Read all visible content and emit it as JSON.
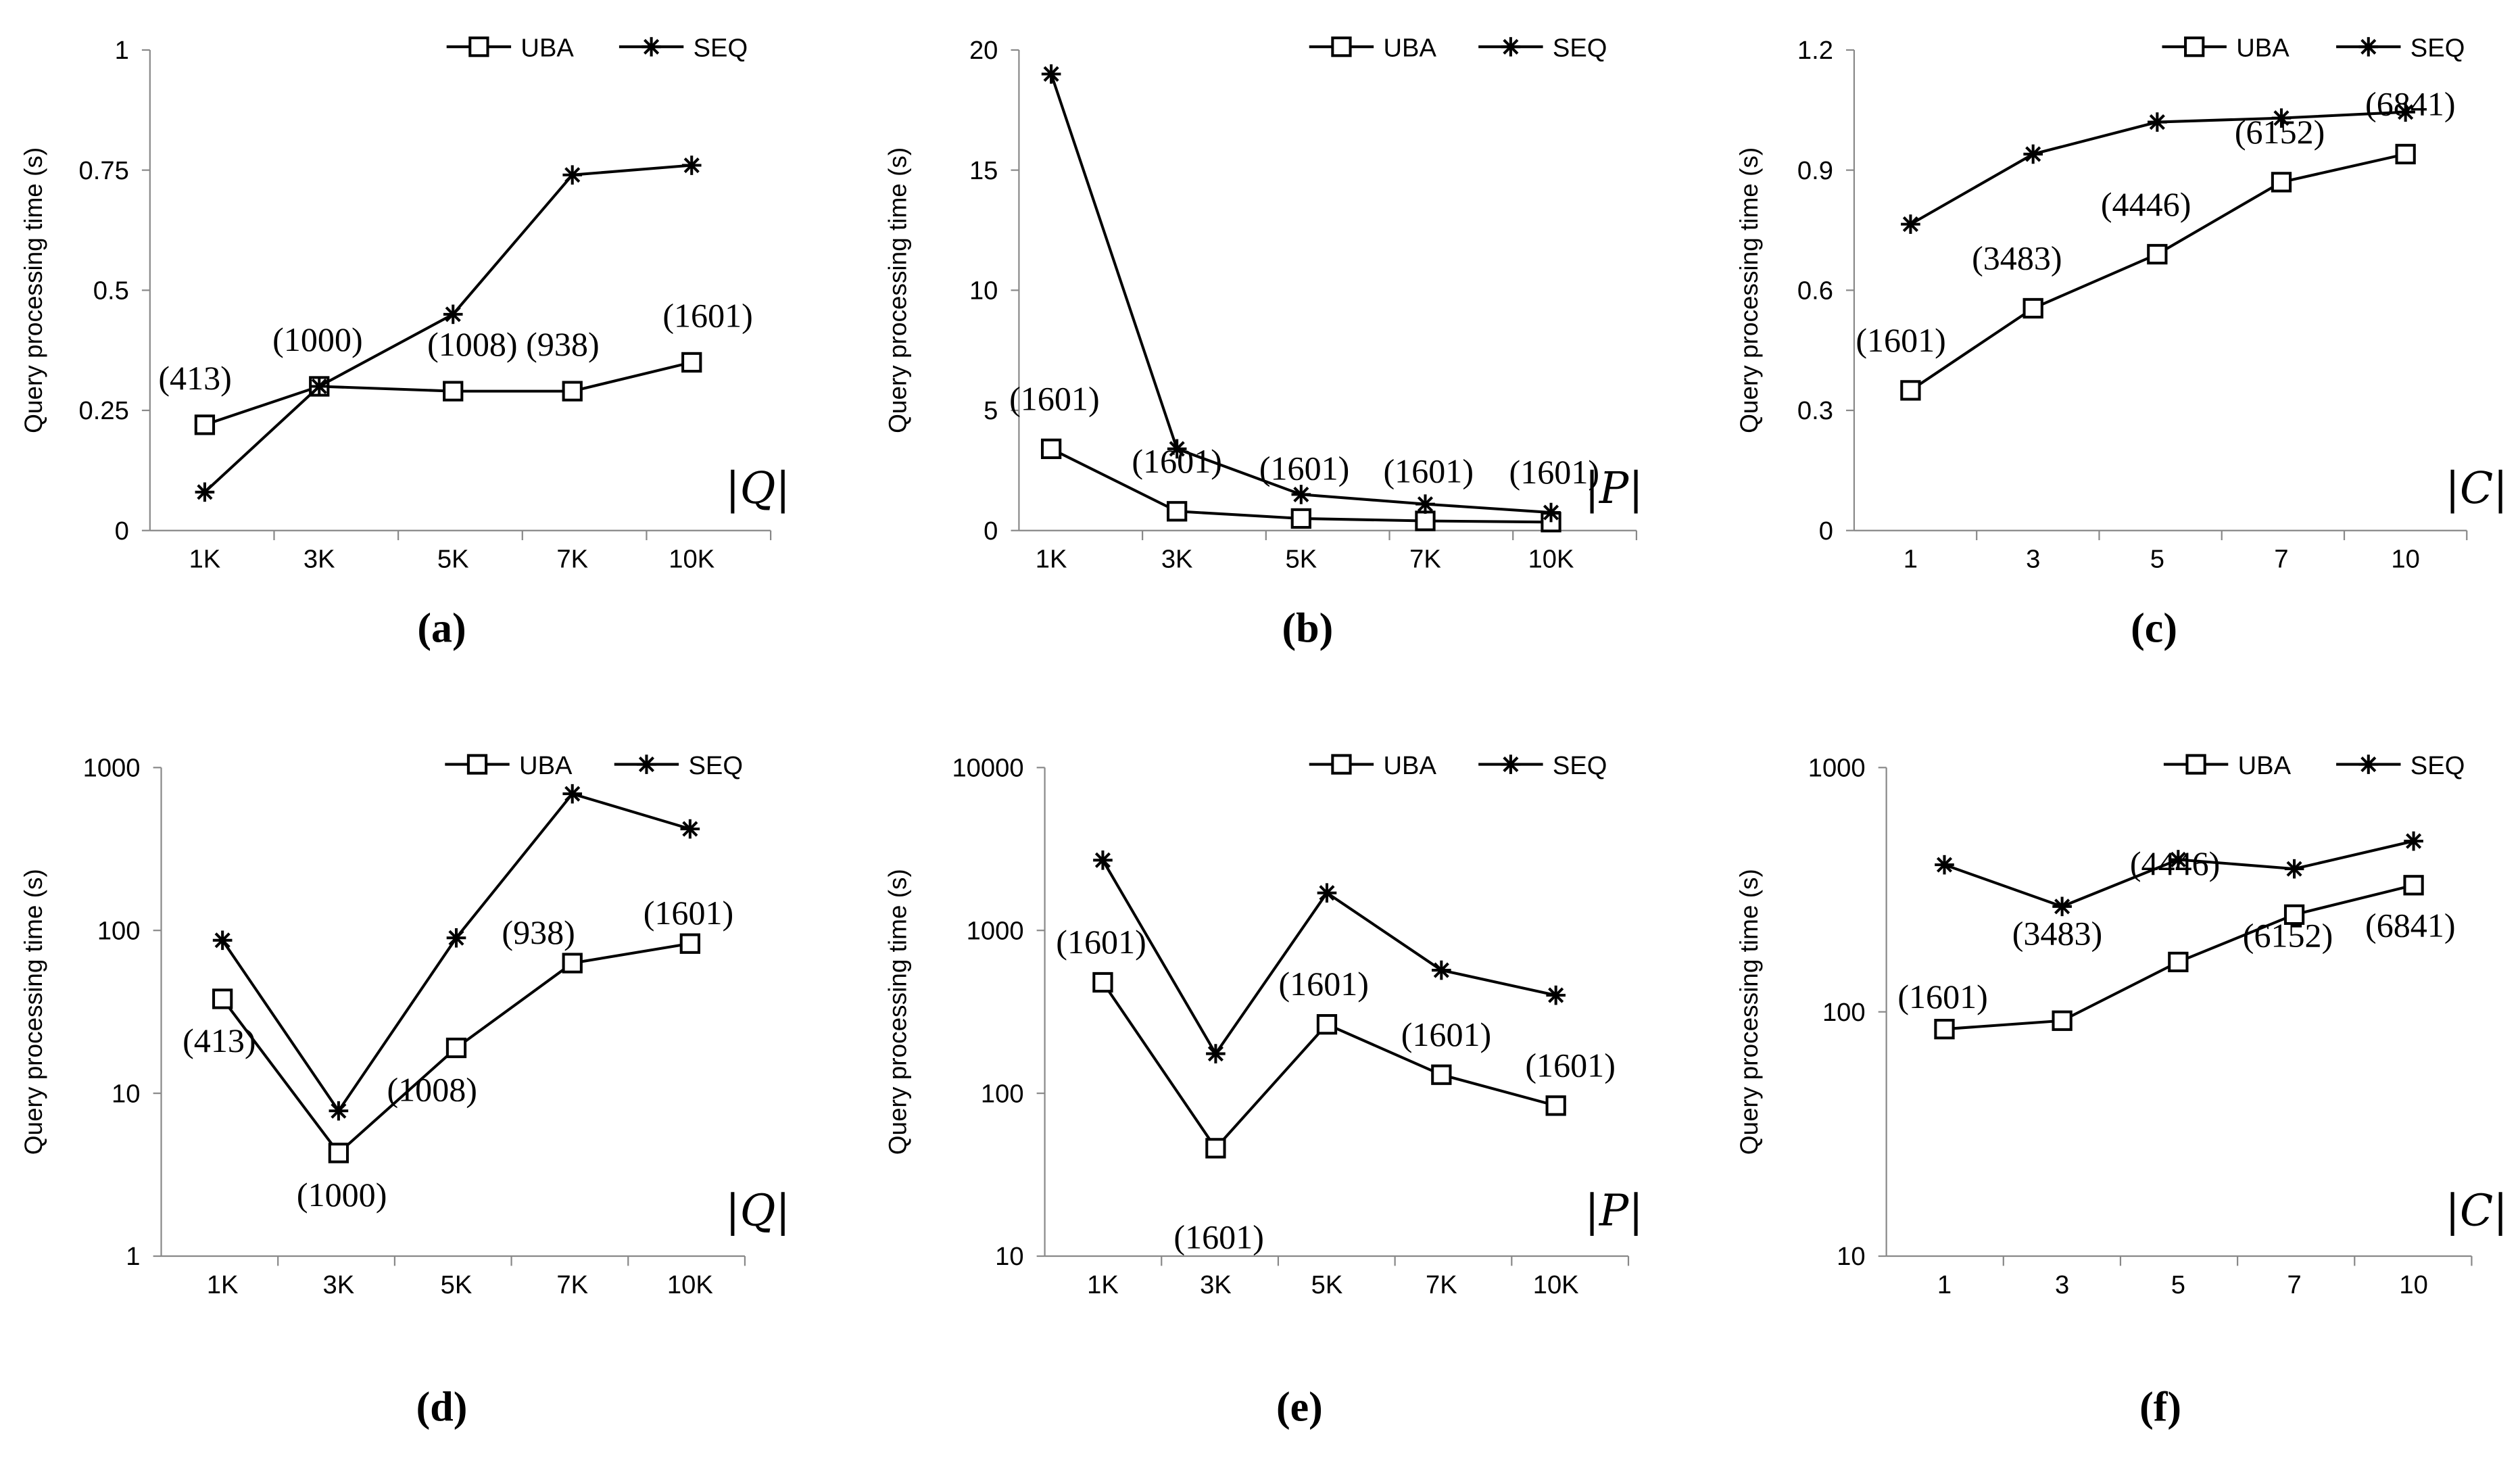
{
  "chart_data": [
    {
      "id": "a",
      "type": "line",
      "caption": "(a)",
      "ylabel": "Query processing time (s)",
      "xlabel": "|Q|",
      "scale": "linear",
      "ylim": [
        0,
        1
      ],
      "yticks": [
        0,
        0.25,
        0.5,
        0.75,
        1
      ],
      "ytick_labels": [
        "0",
        "0.25",
        "0.5",
        "0.75",
        "1"
      ],
      "categories": [
        "1K",
        "3K",
        "5K",
        "7K",
        "10K"
      ],
      "legend": [
        "UBA",
        "SEQ"
      ],
      "series": [
        {
          "name": "UBA",
          "marker": "square",
          "values": [
            0.22,
            0.3,
            0.29,
            0.29,
            0.35
          ]
        },
        {
          "name": "SEQ",
          "marker": "star",
          "values": [
            0.08,
            0.3,
            0.45,
            0.74,
            0.76
          ]
        }
      ],
      "point_labels": [
        "(413)",
        "(1000)",
        "(1008)",
        "(938)",
        "(1601)"
      ]
    },
    {
      "id": "b",
      "type": "line",
      "caption": "(b)",
      "ylabel": "Query processing time (s)",
      "xlabel": "|P|",
      "scale": "linear",
      "ylim": [
        0,
        20
      ],
      "yticks": [
        0,
        5,
        10,
        15,
        20
      ],
      "ytick_labels": [
        "0",
        "5",
        "10",
        "15",
        "20"
      ],
      "categories": [
        "1K",
        "3K",
        "5K",
        "7K",
        "10K"
      ],
      "legend": [
        "UBA",
        "SEQ"
      ],
      "series": [
        {
          "name": "UBA",
          "marker": "square",
          "values": [
            3.4,
            0.8,
            0.5,
            0.4,
            0.35
          ]
        },
        {
          "name": "SEQ",
          "marker": "star",
          "values": [
            19,
            3.4,
            1.5,
            1.1,
            0.75
          ]
        }
      ],
      "point_labels": [
        "(1601)",
        "(1601)",
        "(1601)",
        "(1601)",
        "(1601)"
      ]
    },
    {
      "id": "c",
      "type": "line",
      "caption": "(c)",
      "ylabel": "Query processing time (s)",
      "xlabel": "|C|",
      "scale": "linear",
      "ylim": [
        0,
        1.2
      ],
      "yticks": [
        0,
        0.3,
        0.6,
        0.9,
        1.2
      ],
      "ytick_labels": [
        "0",
        "0.3",
        "0.6",
        "0.9",
        "1.2"
      ],
      "categories": [
        "1",
        "3",
        "5",
        "7",
        "10"
      ],
      "legend": [
        "UBA",
        "SEQ"
      ],
      "series": [
        {
          "name": "UBA",
          "marker": "square",
          "values": [
            0.35,
            0.555,
            0.69,
            0.87,
            0.94
          ]
        },
        {
          "name": "SEQ",
          "marker": "star",
          "values": [
            0.765,
            0.94,
            1.02,
            1.03,
            1.045
          ]
        }
      ],
      "point_labels": [
        "(1601)",
        "(3483)",
        "(4446)",
        "(6152)",
        "(6841)"
      ]
    },
    {
      "id": "d",
      "type": "line",
      "caption": "(d)",
      "ylabel": "Query processing time (s)",
      "xlabel": "|Q|",
      "scale": "log",
      "ylim": [
        1,
        1000
      ],
      "yticks": [
        1,
        10,
        100,
        1000
      ],
      "ytick_labels": [
        "1",
        "10",
        "100",
        "1000"
      ],
      "categories": [
        "1K",
        "3K",
        "5K",
        "7K",
        "10K"
      ],
      "legend": [
        "UBA",
        "SEQ"
      ],
      "series": [
        {
          "name": "UBA",
          "marker": "square",
          "values": [
            38,
            4.3,
            19,
            63,
            83
          ]
        },
        {
          "name": "SEQ",
          "marker": "star",
          "values": [
            87,
            7.8,
            90,
            690,
            420
          ]
        }
      ],
      "point_labels": [
        "(413)",
        "(1000)",
        "(1008)",
        "(938)",
        "(1601)"
      ]
    },
    {
      "id": "e",
      "type": "line",
      "caption": "(e)",
      "ylabel": "Query processing time (s)",
      "xlabel": "|P|",
      "scale": "log",
      "ylim": [
        10,
        10000
      ],
      "yticks": [
        10,
        100,
        1000,
        10000
      ],
      "ytick_labels": [
        "10",
        "100",
        "1000",
        "10000"
      ],
      "categories": [
        "1K",
        "3K",
        "5K",
        "7K",
        "10K"
      ],
      "legend": [
        "UBA",
        "SEQ"
      ],
      "series": [
        {
          "name": "UBA",
          "marker": "square",
          "values": [
            480,
            46,
            265,
            130,
            84
          ]
        },
        {
          "name": "SEQ",
          "marker": "star",
          "values": [
            2700,
            175,
            1700,
            570,
            400
          ]
        }
      ],
      "point_labels": [
        "(1601)",
        "(1601)",
        "(1601)",
        "(1601)",
        "(1601)"
      ]
    },
    {
      "id": "f",
      "type": "line",
      "caption": "(f)",
      "ylabel": "Query processing time (s)",
      "xlabel": "|C|",
      "scale": "log",
      "ylim": [
        10,
        1000
      ],
      "yticks": [
        10,
        100,
        1000
      ],
      "ytick_labels": [
        "10",
        "100",
        "1000"
      ],
      "categories": [
        "1",
        "3",
        "5",
        "7",
        "10"
      ],
      "legend": [
        "UBA",
        "SEQ"
      ],
      "series": [
        {
          "name": "UBA",
          "marker": "square",
          "values": [
            85,
            92,
            160,
            250,
            330
          ]
        },
        {
          "name": "SEQ",
          "marker": "star",
          "values": [
            400,
            270,
            420,
            385,
            500
          ]
        }
      ],
      "point_labels": [
        "(1601)",
        "(3483)",
        "(4446)",
        "(6152)",
        "(6841)"
      ]
    }
  ]
}
